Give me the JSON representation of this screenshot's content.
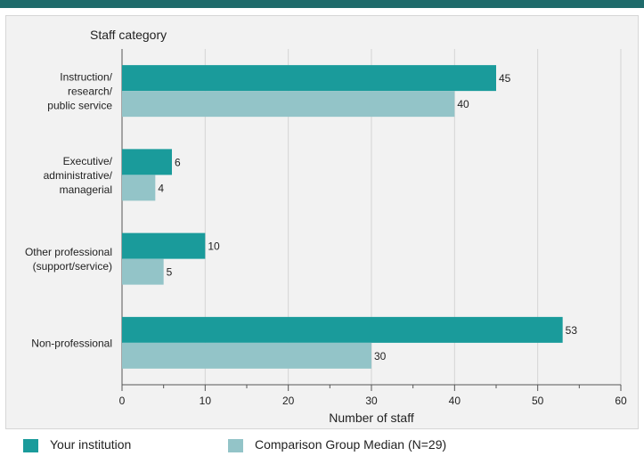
{
  "chart_data": {
    "type": "bar",
    "orientation": "horizontal",
    "title": "",
    "ylabel": "Staff category",
    "xlabel": "Number of staff",
    "xlim": [
      0,
      60
    ],
    "xticks": [
      0,
      10,
      20,
      30,
      40,
      50,
      60
    ],
    "grid": true,
    "legend_position": "bottom",
    "categories": [
      [
        "Instruction/",
        "research/",
        "public service"
      ],
      [
        "Executive/",
        "administrative/",
        "managerial"
      ],
      [
        "Other professional",
        "(support/service)"
      ],
      [
        "Non-professional"
      ]
    ],
    "series": [
      {
        "name": "Your institution",
        "color": "#1a9b9b",
        "values": [
          45,
          6,
          10,
          53
        ]
      },
      {
        "name": "Comparison Group Median (N=29)",
        "color": "#93c4c8",
        "values": [
          40,
          4,
          5,
          30
        ]
      }
    ]
  },
  "legend": {
    "primary_label": "Your institution",
    "compare_label": "Comparison Group Median (N=29)"
  }
}
